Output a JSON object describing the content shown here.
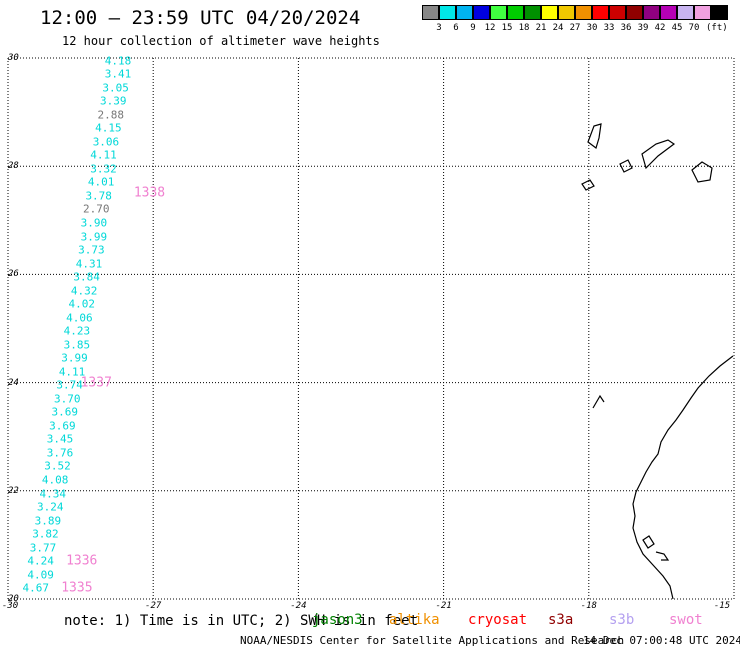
{
  "header": {
    "title": "12:00 — 23:59 UTC 04/20/2024",
    "subtitle": "12 hour collection of altimeter wave heights"
  },
  "legend": {
    "unit": "(ft)",
    "bins": [
      {
        "label": "",
        "color": "#888888"
      },
      {
        "label": "3",
        "color": "#00e8e8"
      },
      {
        "label": "6",
        "color": "#00b4f0"
      },
      {
        "label": "9",
        "color": "#0000e0"
      },
      {
        "label": "12",
        "color": "#40ff40"
      },
      {
        "label": "15",
        "color": "#00cc00"
      },
      {
        "label": "18",
        "color": "#009000"
      },
      {
        "label": "21",
        "color": "#ffff00"
      },
      {
        "label": "24",
        "color": "#f0c800"
      },
      {
        "label": "27",
        "color": "#f09000"
      },
      {
        "label": "30",
        "color": "#ff0000"
      },
      {
        "label": "33",
        "color": "#cc0000"
      },
      {
        "label": "36",
        "color": "#900000"
      },
      {
        "label": "39",
        "color": "#900080"
      },
      {
        "label": "42",
        "color": "#b400b4"
      },
      {
        "label": "45",
        "color": "#c8b4f0"
      },
      {
        "label": "70",
        "color": "#f0a0e0"
      },
      {
        "label": "",
        "color": "#000000"
      }
    ]
  },
  "map": {
    "lon_range": [
      -30,
      -15
    ],
    "lat_range": [
      20,
      30
    ],
    "lon_ticks": [
      "-30",
      "-27",
      "-24",
      "-21",
      "-18",
      "-15"
    ],
    "lat_ticks": [
      "20",
      "22",
      "24",
      "26",
      "28",
      "30"
    ],
    "lat_tick_labels": [
      "20",
      "22",
      "24",
      "26",
      "28",
      "30"
    ],
    "observations": [
      {
        "lon": -28.0,
        "lat": 29.95,
        "value": "4.18",
        "color": "#00d8d8"
      },
      {
        "lon": -28.0,
        "lat": 29.7,
        "value": "3.41",
        "color": "#00d8d8"
      },
      {
        "lon": -28.05,
        "lat": 29.45,
        "value": "3.05",
        "color": "#00d8d8"
      },
      {
        "lon": -28.1,
        "lat": 29.2,
        "value": "3.39",
        "color": "#00d8d8"
      },
      {
        "lon": -28.15,
        "lat": 28.95,
        "value": "2.88",
        "color": "#777777"
      },
      {
        "lon": -28.2,
        "lat": 28.7,
        "value": "4.15",
        "color": "#00d8d8"
      },
      {
        "lon": -28.25,
        "lat": 28.45,
        "value": "3.06",
        "color": "#00d8d8"
      },
      {
        "lon": -28.3,
        "lat": 28.2,
        "value": "4.11",
        "color": "#00d8d8"
      },
      {
        "lon": -28.3,
        "lat": 27.95,
        "value": "3.32",
        "color": "#00d8d8"
      },
      {
        "lon": -28.35,
        "lat": 27.7,
        "value": "4.01",
        "color": "#00d8d8"
      },
      {
        "lon": -28.4,
        "lat": 27.45,
        "value": "3.78",
        "color": "#00d8d8"
      },
      {
        "lon": -28.45,
        "lat": 27.2,
        "value": "2.70",
        "color": "#777777"
      },
      {
        "lon": -28.5,
        "lat": 26.95,
        "value": "3.90",
        "color": "#00d8d8"
      },
      {
        "lon": -28.5,
        "lat": 26.7,
        "value": "3.99",
        "color": "#00d8d8"
      },
      {
        "lon": -28.55,
        "lat": 26.45,
        "value": "3.73",
        "color": "#00d8d8"
      },
      {
        "lon": -28.6,
        "lat": 26.2,
        "value": "4.31",
        "color": "#00d8d8"
      },
      {
        "lon": -28.65,
        "lat": 25.95,
        "value": "3.84",
        "color": "#00d8d8"
      },
      {
        "lon": -28.7,
        "lat": 25.7,
        "value": "4.32",
        "color": "#00d8d8"
      },
      {
        "lon": -28.75,
        "lat": 25.45,
        "value": "4.02",
        "color": "#00d8d8"
      },
      {
        "lon": -28.8,
        "lat": 25.2,
        "value": "4.06",
        "color": "#00d8d8"
      },
      {
        "lon": -28.85,
        "lat": 24.95,
        "value": "4.23",
        "color": "#00d8d8"
      },
      {
        "lon": -28.85,
        "lat": 24.7,
        "value": "3.85",
        "color": "#00d8d8"
      },
      {
        "lon": -28.9,
        "lat": 24.45,
        "value": "3.99",
        "color": "#00d8d8"
      },
      {
        "lon": -28.95,
        "lat": 24.2,
        "value": "4.11",
        "color": "#00d8d8"
      },
      {
        "lon": -29.0,
        "lat": 23.95,
        "value": "3.74",
        "color": "#00d8d8"
      },
      {
        "lon": -29.05,
        "lat": 23.7,
        "value": "3.70",
        "color": "#00d8d8"
      },
      {
        "lon": -29.1,
        "lat": 23.45,
        "value": "3.69",
        "color": "#00d8d8"
      },
      {
        "lon": -29.15,
        "lat": 23.2,
        "value": "3.69",
        "color": "#00d8d8"
      },
      {
        "lon": -29.2,
        "lat": 22.95,
        "value": "3.45",
        "color": "#00d8d8"
      },
      {
        "lon": -29.2,
        "lat": 22.7,
        "value": "3.76",
        "color": "#00d8d8"
      },
      {
        "lon": -29.25,
        "lat": 22.45,
        "value": "3.52",
        "color": "#00d8d8"
      },
      {
        "lon": -29.3,
        "lat": 22.2,
        "value": "4.08",
        "color": "#00d8d8"
      },
      {
        "lon": -29.35,
        "lat": 21.95,
        "value": "4.34",
        "color": "#00d8d8"
      },
      {
        "lon": -29.4,
        "lat": 21.7,
        "value": "3.24",
        "color": "#00d8d8"
      },
      {
        "lon": -29.45,
        "lat": 21.45,
        "value": "3.89",
        "color": "#00d8d8"
      },
      {
        "lon": -29.5,
        "lat": 21.2,
        "value": "3.82",
        "color": "#00d8d8"
      },
      {
        "lon": -29.55,
        "lat": 20.95,
        "value": "3.77",
        "color": "#00d8d8"
      },
      {
        "lon": -29.6,
        "lat": 20.7,
        "value": "4.24",
        "color": "#00d8d8"
      },
      {
        "lon": -29.6,
        "lat": 20.45,
        "value": "4.09",
        "color": "#00d8d8"
      },
      {
        "lon": -29.7,
        "lat": 20.2,
        "value": "4.67",
        "color": "#00d8d8"
      }
    ],
    "pass_labels": [
      {
        "lon": -27.4,
        "lat": 27.5,
        "text": "1338",
        "color": "#f080d0"
      },
      {
        "lon": -28.5,
        "lat": 24.0,
        "text": "1337",
        "color": "#f080d0"
      },
      {
        "lon": -28.8,
        "lat": 20.7,
        "text": "1336",
        "color": "#f080d0"
      },
      {
        "lon": -28.9,
        "lat": 20.2,
        "text": "1335",
        "color": "#f080d0"
      }
    ]
  },
  "footer": {
    "note": "note: 1) Time is in UTC; 2) SWH is in feet",
    "satellites": [
      {
        "name": "jason3",
        "color": "#008000"
      },
      {
        "name": "altika",
        "color": "#f09000"
      },
      {
        "name": "cryosat",
        "color": "#ff0000"
      },
      {
        "name": "s3a",
        "color": "#900000"
      },
      {
        "name": "s3b",
        "color": "#b4a0f0"
      },
      {
        "name": "swot",
        "color": "#f080d0"
      }
    ],
    "org": "NOAA/NESDIS Center for Satellite Applications and Research",
    "timestamp": "14 Dec 07:00:48 UTC 2024"
  }
}
